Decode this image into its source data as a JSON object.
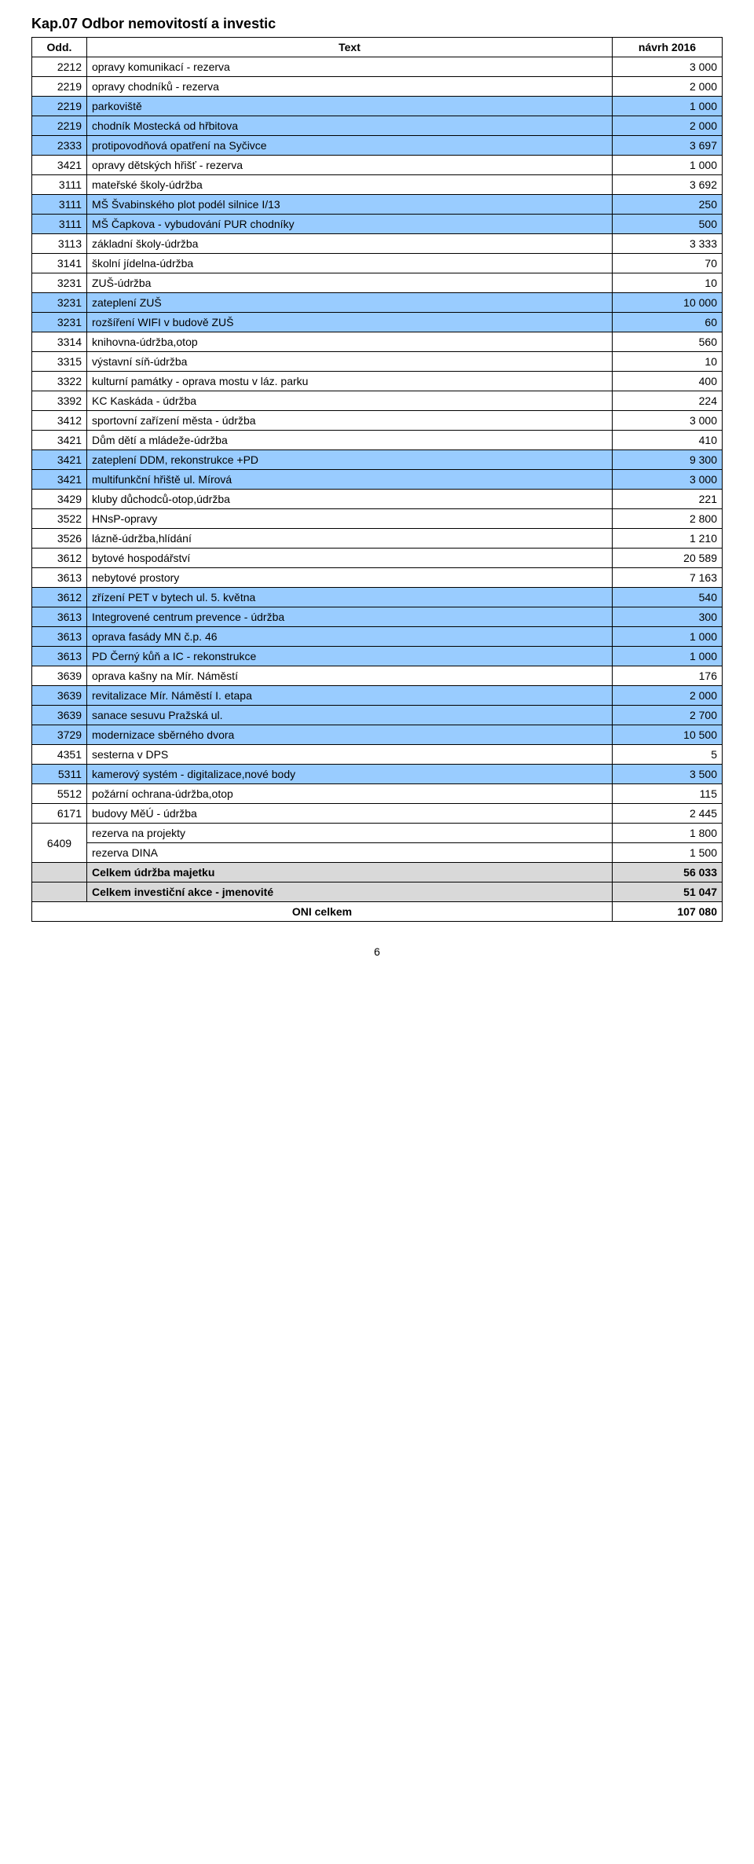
{
  "chapter_title": "Kap.07  Odbor nemovitostí a investic",
  "header": {
    "odd": "Odd.",
    "text": "Text",
    "val": "návrh 2016"
  },
  "rows": [
    {
      "odd": "2212",
      "text": "opravy komunikací - rezerva",
      "val": "3 000",
      "hl": false
    },
    {
      "odd": "2219",
      "text": "opravy chodníků - rezerva",
      "val": "2 000",
      "hl": false
    },
    {
      "odd": "2219",
      "text": "parkoviště",
      "val": "1 000",
      "hl": true
    },
    {
      "odd": "2219",
      "text": "chodník Mostecká od hřbitova",
      "val": "2 000",
      "hl": true
    },
    {
      "odd": "2333",
      "text": "protipovodňová opatření na Syčivce",
      "val": "3 697",
      "hl": true
    },
    {
      "odd": "3421",
      "text": "opravy dětských hřišť - rezerva",
      "val": "1 000",
      "hl": false
    },
    {
      "odd": "3111",
      "text": "mateřské školy-údržba",
      "val": "3 692",
      "hl": false
    },
    {
      "odd": "3111",
      "text": "MŠ Švabinského plot podél silnice I/13",
      "val": "250",
      "hl": true
    },
    {
      "odd": "3111",
      "text": "MŠ Čapkova - vybudování PUR chodníky",
      "val": "500",
      "hl": true
    },
    {
      "odd": "3113",
      "text": "základní školy-údržba",
      "val": "3 333",
      "hl": false
    },
    {
      "odd": "3141",
      "text": "školní jídelna-údržba",
      "val": "70",
      "hl": false
    },
    {
      "odd": "3231",
      "text": "ZUŠ-údržba",
      "val": "10",
      "hl": false
    },
    {
      "odd": "3231",
      "text": "zateplení ZUŠ",
      "val": "10 000",
      "hl": true
    },
    {
      "odd": "3231",
      "text": "rozšíření WIFI v budově ZUŠ",
      "val": "60",
      "hl": true
    },
    {
      "odd": "3314",
      "text": "knihovna-údržba,otop",
      "val": "560",
      "hl": false
    },
    {
      "odd": "3315",
      "text": "výstavní síň-údržba",
      "val": "10",
      "hl": false
    },
    {
      "odd": "3322",
      "text": "kulturní památky - oprava mostu v láz. parku",
      "val": "400",
      "hl": false
    },
    {
      "odd": "3392",
      "text": "KC Kaskáda - údržba",
      "val": "224",
      "hl": false
    },
    {
      "odd": "3412",
      "text": "sportovní zařízení města - údržba",
      "val": "3 000",
      "hl": false
    },
    {
      "odd": "3421",
      "text": "Dům dětí a mládeže-údržba",
      "val": "410",
      "hl": false
    },
    {
      "odd": "3421",
      "text": "zateplení DDM, rekonstrukce +PD",
      "val": "9 300",
      "hl": true
    },
    {
      "odd": "3421",
      "text": "multifunkční hřiště ul. Mírová",
      "val": "3 000",
      "hl": true
    },
    {
      "odd": "3429",
      "text": "kluby důchodců-otop,údržba",
      "val": "221",
      "hl": false
    },
    {
      "odd": "3522",
      "text": "HNsP-opravy",
      "val": "2 800",
      "hl": false
    },
    {
      "odd": "3526",
      "text": "lázně-údržba,hlídání",
      "val": "1 210",
      "hl": false
    },
    {
      "odd": "3612",
      "text": "bytové hospodářství",
      "val": "20 589",
      "hl": false
    },
    {
      "odd": "3613",
      "text": "nebytové prostory",
      "val": "7 163",
      "hl": false
    },
    {
      "odd": "3612",
      "text": "zřízení PET v bytech ul. 5. května",
      "val": "540",
      "hl": true
    },
    {
      "odd": "3613",
      "text": "Integrovené centrum prevence - údržba",
      "val": "300",
      "hl": true
    },
    {
      "odd": "3613",
      "text": "oprava fasády MN č.p. 46",
      "val": "1 000",
      "hl": true
    },
    {
      "odd": "3613",
      "text": "PD Černý kůň a IC - rekonstrukce",
      "val": "1 000",
      "hl": true
    },
    {
      "odd": "3639",
      "text": "oprava kašny na Mír. Náměstí",
      "val": "176",
      "hl": false
    },
    {
      "odd": "3639",
      "text": "revitalizace Mír. Náměstí I. etapa",
      "val": "2 000",
      "hl": true
    },
    {
      "odd": "3639",
      "text": "sanace sesuvu Pražská ul.",
      "val": "2 700",
      "hl": true
    },
    {
      "odd": "3729",
      "text": "modernizace sběrného dvora",
      "val": "10 500",
      "hl": true
    },
    {
      "odd": "4351",
      "text": "sesterna v DPS",
      "val": "5",
      "hl": false
    },
    {
      "odd": "5311",
      "text": "kamerový systém - digitalizace,nové body",
      "val": "3 500",
      "hl": true
    },
    {
      "odd": "5512",
      "text": "požární ochrana-údržba,otop",
      "val": "115",
      "hl": false
    },
    {
      "odd": "6171",
      "text": "budovy MěÚ - údržba",
      "val": "2 445",
      "hl": false
    }
  ],
  "merged": {
    "odd": "6409",
    "rows": [
      {
        "text": "rezerva na projekty",
        "val": "1 800"
      },
      {
        "text": "rezerva DINA",
        "val": "1 500"
      }
    ]
  },
  "summary": [
    {
      "text": "Celkem údržba majetku",
      "val": "56 033",
      "gray": true
    },
    {
      "text": "Celkem investiční akce - jmenovité",
      "val": "51 047",
      "gray": true
    }
  ],
  "total": {
    "text": "ONI  celkem",
    "val": "107 080"
  },
  "page_number": "6",
  "colors": {
    "highlight": "#99ccff",
    "gray": "#d9d9d9",
    "border": "#000000",
    "background": "#ffffff"
  }
}
